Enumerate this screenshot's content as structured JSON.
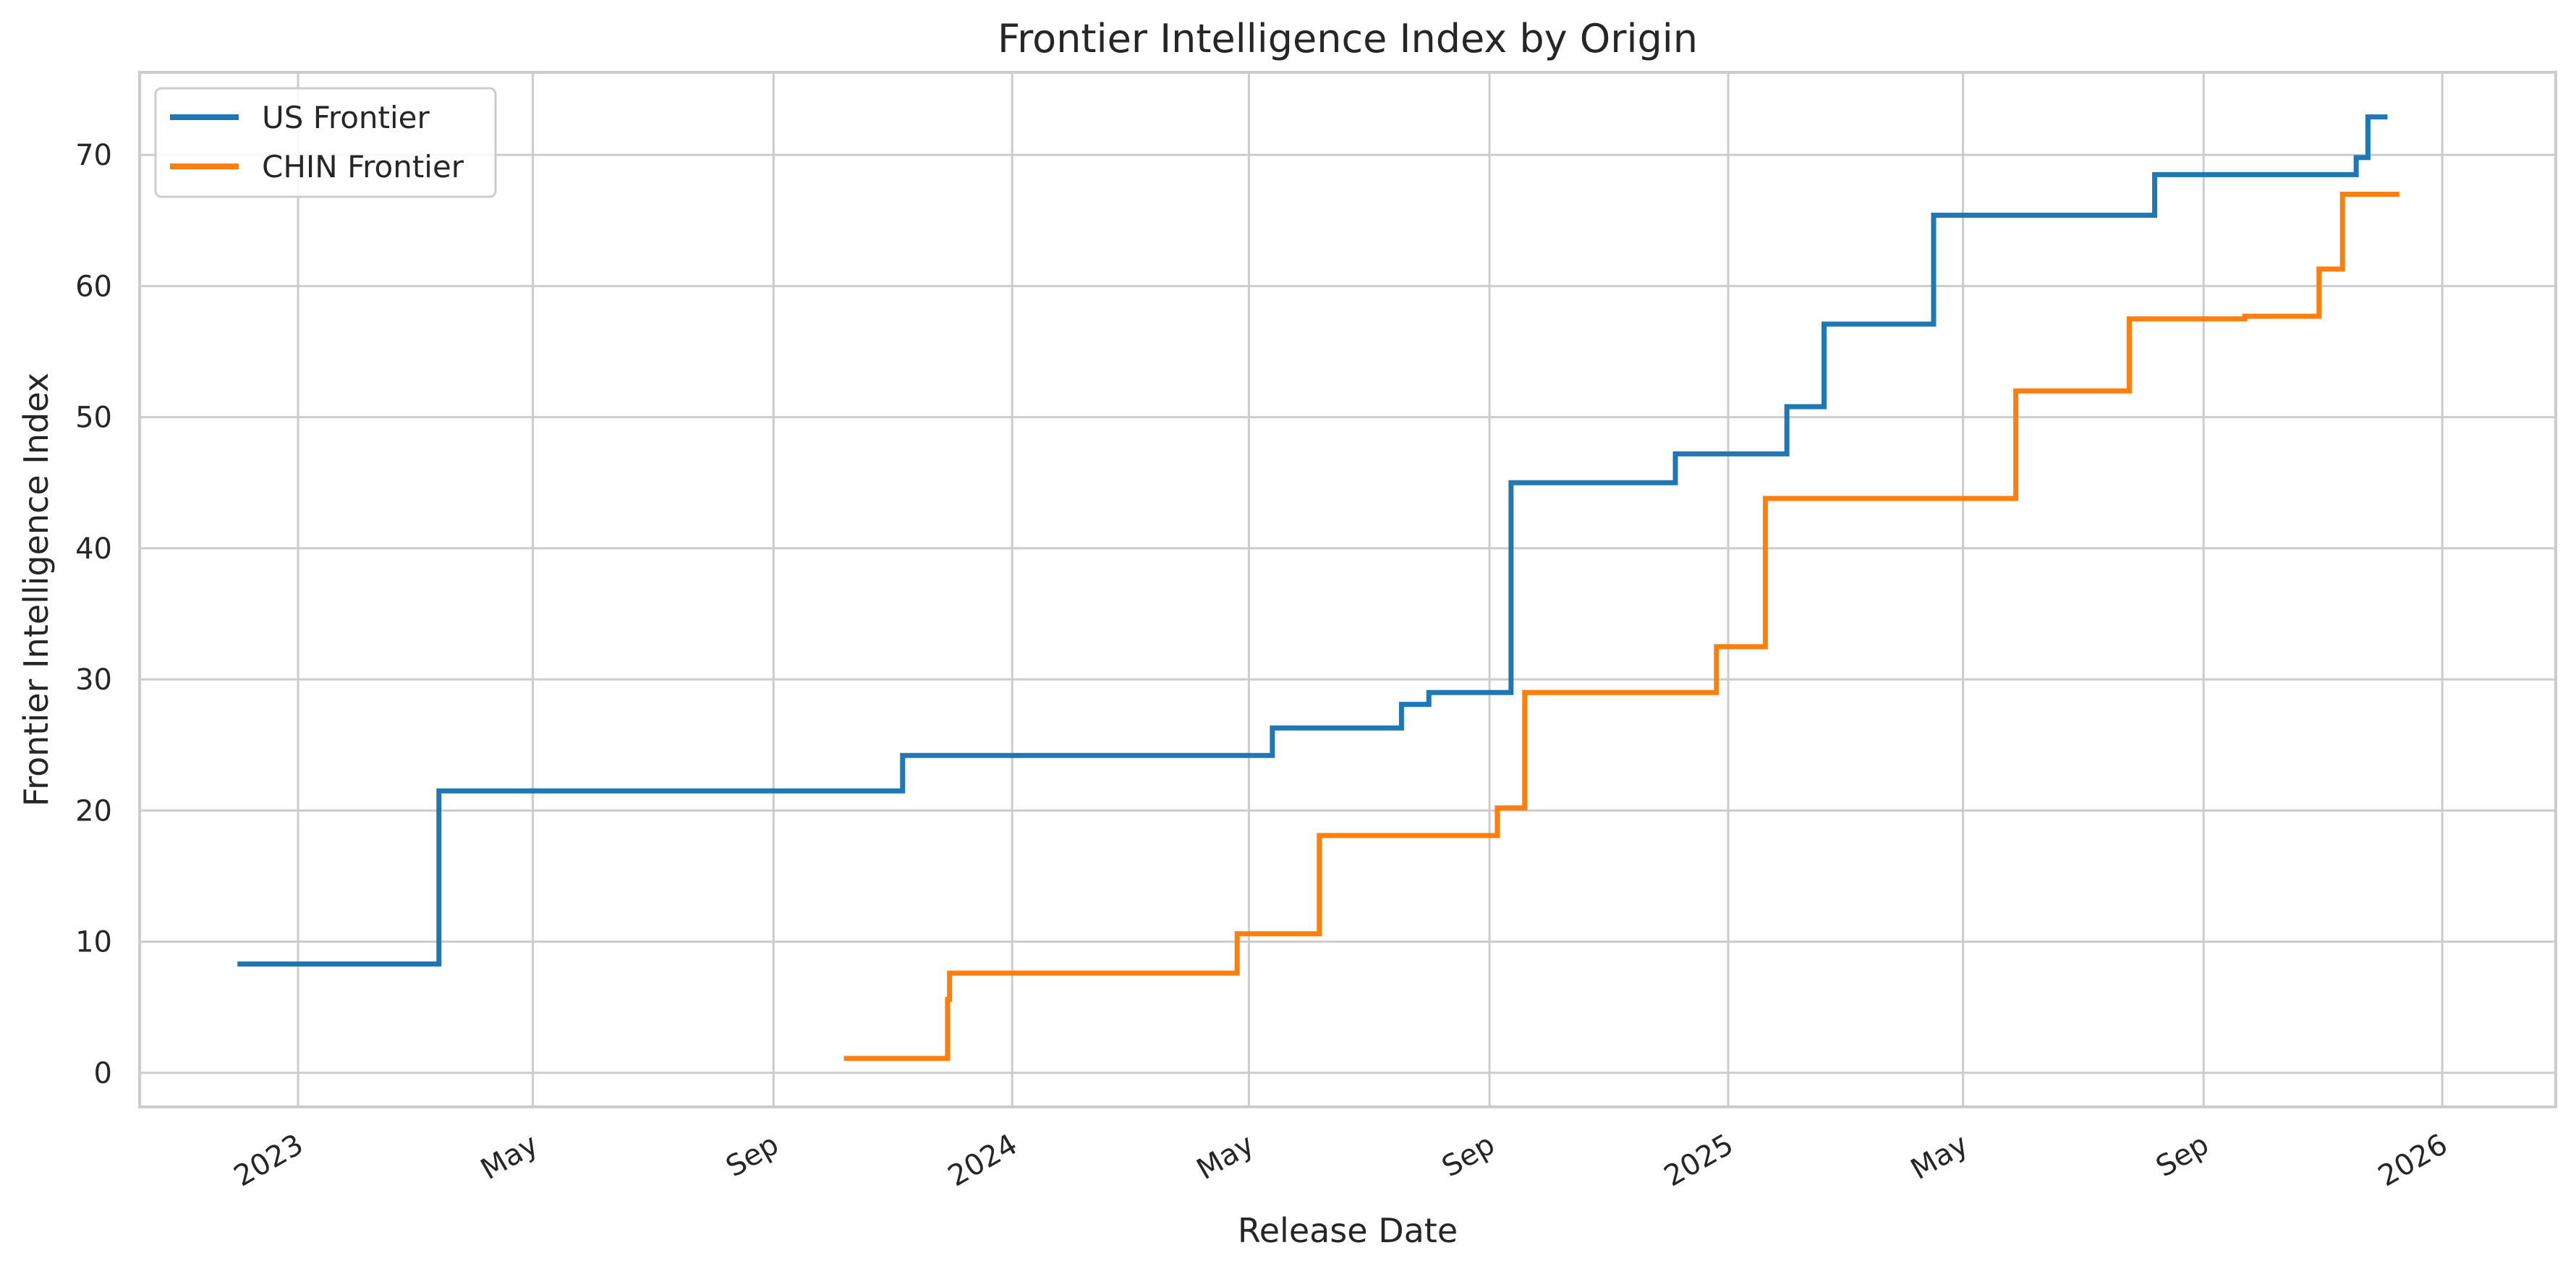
{
  "chart_data": {
    "type": "line",
    "step": "post",
    "title": "Frontier Intelligence Index by Origin",
    "xlabel": "Release Date",
    "ylabel": "Frontier Intelligence Index",
    "xlim": [
      "2022-10-12",
      "2026-02-28"
    ],
    "ylim": [
      -2.6,
      76.3
    ],
    "yticks": [
      0,
      10,
      20,
      30,
      40,
      50,
      60,
      70
    ],
    "xticks": [
      {
        "date": "2023-01-01",
        "label": "2023"
      },
      {
        "date": "2023-05-01",
        "label": "May"
      },
      {
        "date": "2023-09-01",
        "label": "Sep"
      },
      {
        "date": "2024-01-01",
        "label": "2024"
      },
      {
        "date": "2024-05-01",
        "label": "May"
      },
      {
        "date": "2024-09-01",
        "label": "Sep"
      },
      {
        "date": "2025-01-01",
        "label": "2025"
      },
      {
        "date": "2025-05-01",
        "label": "May"
      },
      {
        "date": "2025-09-01",
        "label": "Sep"
      },
      {
        "date": "2026-01-01",
        "label": "2026"
      }
    ],
    "grid": true,
    "legend": "upper left",
    "series": [
      {
        "name": "US Frontier",
        "color": "#1f77b4",
        "x": [
          "2022-12-01",
          "2023-03-14",
          "2023-11-06",
          "2024-05-13",
          "2024-07-18",
          "2024-08-01",
          "2024-09-12",
          "2024-12-05",
          "2025-01-31",
          "2025-02-19",
          "2025-04-16",
          "2025-08-07",
          "2025-11-18",
          "2025-11-24",
          "2025-12-04"
        ],
        "y": [
          8.3,
          21.5,
          24.2,
          26.3,
          28.1,
          29.0,
          45.0,
          47.2,
          50.8,
          57.1,
          65.4,
          68.5,
          69.8,
          72.9,
          72.9
        ]
      },
      {
        "name": "CHIN Frontier",
        "color": "#ff7f0e",
        "x": [
          "2023-10-07",
          "2023-11-29",
          "2023-11-30",
          "2024-04-25",
          "2024-06-06",
          "2024-09-05",
          "2024-09-19",
          "2024-12-26",
          "2025-01-20",
          "2025-05-28",
          "2025-07-25",
          "2025-09-22",
          "2025-10-30",
          "2025-11-11",
          "2025-12-10"
        ],
        "y": [
          1.1,
          5.6,
          7.6,
          10.6,
          18.1,
          20.2,
          29.0,
          32.5,
          43.8,
          52.0,
          57.5,
          57.7,
          61.3,
          67.0,
          67.0
        ]
      }
    ]
  }
}
